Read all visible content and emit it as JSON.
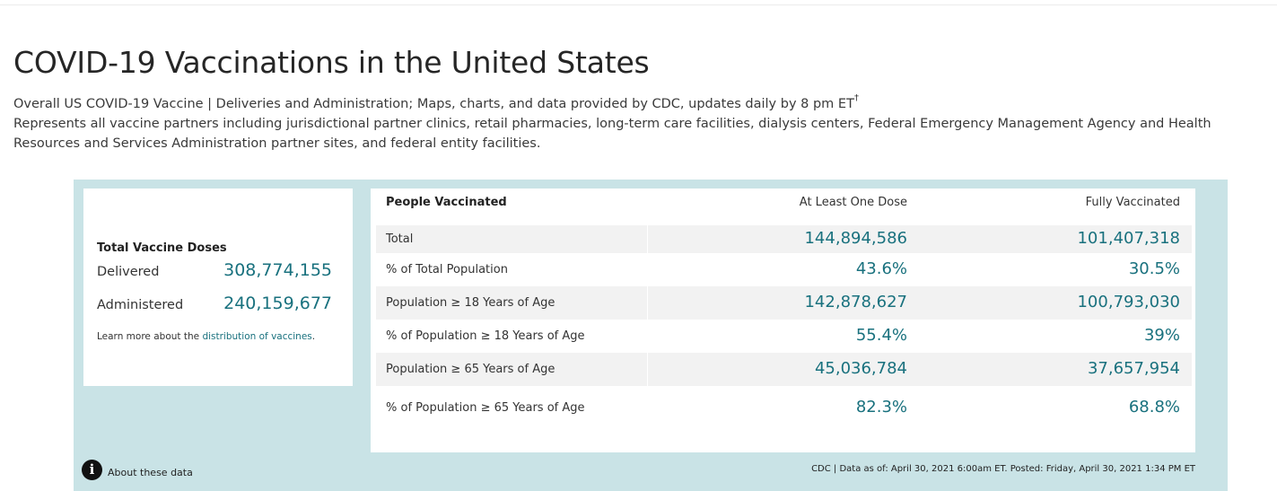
{
  "header": {
    "title": "COVID-19 Vaccinations in the United States",
    "description_line1": "Overall US COVID-19 Vaccine | Deliveries and Administration; Maps, charts, and data provided by CDC, updates daily by 8 pm ET",
    "description_line1_marker": "†",
    "description_line2": "Represents all vaccine partners including jurisdictional partner clinics, retail pharmacies, long-term care facilities, dialysis centers, Federal Emergency Management Agency and Health Resources and Services Administration partner sites, and federal entity facilities."
  },
  "doses": {
    "title": "Total Vaccine Doses",
    "delivered_label": "Delivered",
    "delivered_value": "308,774,155",
    "administered_label": "Administered",
    "administered_value": "240,159,677",
    "learn_more_prefix": "Learn more about the ",
    "learn_more_link": "distribution of vaccines",
    "learn_more_suffix": "."
  },
  "people": {
    "header": {
      "col1": "People Vaccinated",
      "col2": "At Least One Dose",
      "col3": "Fully Vaccinated"
    },
    "rows": [
      {
        "label": "Total",
        "one_dose": "144,894,586",
        "fully": "101,407,318"
      },
      {
        "label": "% of Total Population",
        "one_dose": "43.6%",
        "fully": "30.5%"
      },
      {
        "label": "Population ≥ 18 Years of Age",
        "one_dose": "142,878,627",
        "fully": "100,793,030"
      },
      {
        "label": "% of Population ≥ 18 Years of Age",
        "one_dose": "55.4%",
        "fully": "39%"
      },
      {
        "label": "Population ≥ 65 Years of Age",
        "one_dose": "45,036,784",
        "fully": "37,657,954"
      },
      {
        "label": "% of Population ≥ 65 Years of Age",
        "one_dose": "82.3%",
        "fully": "68.8%"
      }
    ]
  },
  "footer": {
    "about_label": "About these data",
    "source_text": "CDC | Data as of: April 30, 2021 6:00am ET. Posted: Friday, April 30, 2021 1:34 PM ET",
    "info_icon_glyph": "i"
  },
  "colors": {
    "accent": "#19717e",
    "panel_bg": "#c9e3e6",
    "row_shade": "#f2f2f2"
  }
}
